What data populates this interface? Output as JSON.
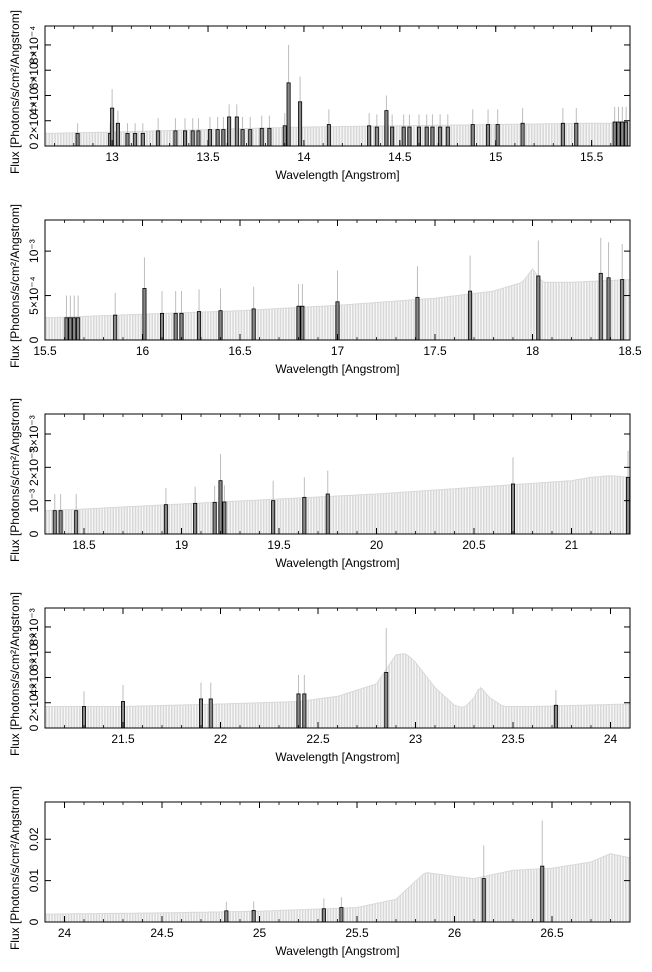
{
  "colors": {
    "background": "#ffffff",
    "axis": "#000000",
    "continuum": "#c8c8c8",
    "line_bar": "#000000",
    "line_fill": "#888888",
    "error_bar": "#bdbdbd"
  },
  "chart_data": [
    {
      "type": "bar",
      "title": "",
      "xlabel": "Wavelength [Angstrom]",
      "ylabel": "Flux [Photons/s/cm²/Angstrom]",
      "xlim": [
        12.65,
        15.7
      ],
      "ylim": [
        0,
        0.00095
      ],
      "x_ticks": [
        13,
        13.5,
        14,
        14.5,
        15,
        15.5
      ],
      "x_tick_labels": [
        "13",
        "13.5",
        "14",
        "14.5",
        "15",
        "15.5"
      ],
      "y_ticks": [
        0,
        0.0002,
        0.0004,
        0.0006,
        0.0008
      ],
      "y_tick_labels": [
        "0",
        "2×10⁻⁴",
        "4×10⁻⁴",
        "6×10⁻⁴",
        "8×10⁻⁴"
      ],
      "continuum": {
        "x": [
          12.65,
          13.0,
          13.5,
          14.0,
          14.5,
          15.0,
          15.5,
          15.7
        ],
        "y": [
          0.0001,
          0.00011,
          0.00013,
          0.00015,
          0.00016,
          0.00017,
          0.00018,
          0.00018
        ]
      },
      "lines": [
        {
          "x": 12.82,
          "y": 0.0001,
          "err": 8e-05
        },
        {
          "x": 12.99,
          "y": 0.0001,
          "err": 8e-05
        },
        {
          "x": 13.0,
          "y": 0.0003,
          "err": 0.00015
        },
        {
          "x": 13.03,
          "y": 0.00018,
          "err": 0.0001
        },
        {
          "x": 13.08,
          "y": 0.0001,
          "err": 8e-05
        },
        {
          "x": 13.12,
          "y": 0.0001,
          "err": 8e-05
        },
        {
          "x": 13.16,
          "y": 0.0001,
          "err": 8e-05
        },
        {
          "x": 13.24,
          "y": 0.00012,
          "err": 0.0001
        },
        {
          "x": 13.33,
          "y": 0.00012,
          "err": 0.0001
        },
        {
          "x": 13.38,
          "y": 0.00012,
          "err": 0.0001
        },
        {
          "x": 13.42,
          "y": 0.00012,
          "err": 0.0001
        },
        {
          "x": 13.45,
          "y": 0.00012,
          "err": 0.0001
        },
        {
          "x": 13.51,
          "y": 0.00013,
          "err": 0.0001
        },
        {
          "x": 13.55,
          "y": 0.00013,
          "err": 0.0001
        },
        {
          "x": 13.58,
          "y": 0.00013,
          "err": 0.0001
        },
        {
          "x": 13.61,
          "y": 0.00023,
          "err": 0.0001
        },
        {
          "x": 13.65,
          "y": 0.00023,
          "err": 0.0001
        },
        {
          "x": 13.68,
          "y": 0.00013,
          "err": 0.0001
        },
        {
          "x": 13.72,
          "y": 0.00013,
          "err": 0.0001
        },
        {
          "x": 13.78,
          "y": 0.00014,
          "err": 0.0001
        },
        {
          "x": 13.82,
          "y": 0.00014,
          "err": 0.0001
        },
        {
          "x": 13.9,
          "y": 0.00016,
          "err": 0.0001
        },
        {
          "x": 13.92,
          "y": 0.0005,
          "err": 0.0003
        },
        {
          "x": 13.98,
          "y": 0.00035,
          "err": 0.0002
        },
        {
          "x": 14.13,
          "y": 0.00017,
          "err": 0.00012
        },
        {
          "x": 14.34,
          "y": 0.00016,
          "err": 0.0001
        },
        {
          "x": 14.38,
          "y": 0.00015,
          "err": 0.0001
        },
        {
          "x": 14.43,
          "y": 0.00028,
          "err": 0.00012
        },
        {
          "x": 14.46,
          "y": 0.00015,
          "err": 0.0001
        },
        {
          "x": 14.52,
          "y": 0.00015,
          "err": 0.0001
        },
        {
          "x": 14.55,
          "y": 0.00015,
          "err": 0.0001
        },
        {
          "x": 14.6,
          "y": 0.00015,
          "err": 0.0001
        },
        {
          "x": 14.64,
          "y": 0.00015,
          "err": 0.0001
        },
        {
          "x": 14.67,
          "y": 0.00015,
          "err": 0.0001
        },
        {
          "x": 14.71,
          "y": 0.00015,
          "err": 0.0001
        },
        {
          "x": 14.75,
          "y": 0.00015,
          "err": 0.0001
        },
        {
          "x": 14.88,
          "y": 0.00017,
          "err": 0.00012
        },
        {
          "x": 14.96,
          "y": 0.00017,
          "err": 0.00012
        },
        {
          "x": 15.01,
          "y": 0.00017,
          "err": 0.00012
        },
        {
          "x": 15.14,
          "y": 0.00018,
          "err": 0.00012
        },
        {
          "x": 15.35,
          "y": 0.00018,
          "err": 0.00012
        },
        {
          "x": 15.42,
          "y": 0.00018,
          "err": 0.00012
        },
        {
          "x": 15.62,
          "y": 0.00019,
          "err": 0.00012
        },
        {
          "x": 15.64,
          "y": 0.00019,
          "err": 0.00012
        },
        {
          "x": 15.66,
          "y": 0.00019,
          "err": 0.00012
        },
        {
          "x": 15.68,
          "y": 0.00019,
          "err": 0.00012
        }
      ]
    },
    {
      "type": "bar",
      "title": "",
      "xlabel": "Wavelength [Angstrom]",
      "ylabel": "Flux [Photons/s/cm²/Angstrom]",
      "xlim": [
        15.5,
        18.5
      ],
      "ylim": [
        0,
        0.00135
      ],
      "x_ticks": [
        15.5,
        16,
        16.5,
        17,
        17.5,
        18,
        18.5
      ],
      "x_tick_labels": [
        "15.5",
        "16",
        "16.5",
        "17",
        "17.5",
        "18",
        "18.5"
      ],
      "y_ticks": [
        0,
        0.0005,
        0.001
      ],
      "y_tick_labels": [
        "0",
        "5×10⁻⁴",
        "10⁻³"
      ],
      "continuum": {
        "x": [
          15.5,
          16.0,
          16.5,
          17.0,
          17.5,
          17.8,
          17.95,
          18.0,
          18.05,
          18.2,
          18.5
        ],
        "y": [
          0.00025,
          0.00029,
          0.00033,
          0.00039,
          0.00047,
          0.00055,
          0.00065,
          0.0008,
          0.00065,
          0.00065,
          0.00068
        ]
      },
      "lines": [
        {
          "x": 15.61,
          "y": 0.00025,
          "err": 0.00025
        },
        {
          "x": 15.63,
          "y": 0.00025,
          "err": 0.00025
        },
        {
          "x": 15.65,
          "y": 0.00025,
          "err": 0.00025
        },
        {
          "x": 15.67,
          "y": 0.00025,
          "err": 0.00025
        },
        {
          "x": 15.86,
          "y": 0.00028,
          "err": 0.00025
        },
        {
          "x": 16.01,
          "y": 0.00058,
          "err": 0.00035
        },
        {
          "x": 16.1,
          "y": 0.0003,
          "err": 0.00025
        },
        {
          "x": 16.17,
          "y": 0.0003,
          "err": 0.00025
        },
        {
          "x": 16.2,
          "y": 0.0003,
          "err": 0.00025
        },
        {
          "x": 16.29,
          "y": 0.00032,
          "err": 0.00025
        },
        {
          "x": 16.4,
          "y": 0.00033,
          "err": 0.00025
        },
        {
          "x": 16.57,
          "y": 0.00035,
          "err": 0.00025
        },
        {
          "x": 16.8,
          "y": 0.00038,
          "err": 0.00025
        },
        {
          "x": 16.82,
          "y": 0.00038,
          "err": 0.00025
        },
        {
          "x": 17.0,
          "y": 0.00043,
          "err": 0.00035
        },
        {
          "x": 17.41,
          "y": 0.00048,
          "err": 0.00035
        },
        {
          "x": 17.68,
          "y": 0.00055,
          "err": 0.0004
        },
        {
          "x": 18.03,
          "y": 0.00072,
          "err": 0.0004
        },
        {
          "x": 18.35,
          "y": 0.00075,
          "err": 0.0004
        },
        {
          "x": 18.39,
          "y": 0.0007,
          "err": 0.0004
        },
        {
          "x": 18.46,
          "y": 0.00068,
          "err": 0.0004
        }
      ]
    },
    {
      "type": "bar",
      "title": "",
      "xlabel": "Wavelength [Angstrom]",
      "ylabel": "Flux [Photons/s/cm²/Angstrom]",
      "xlim": [
        18.3,
        21.3
      ],
      "ylim": [
        0,
        0.0036
      ],
      "x_ticks": [
        18.5,
        19,
        19.5,
        20,
        20.5,
        21
      ],
      "x_tick_labels": [
        "18.5",
        "19",
        "19.5",
        "20",
        "20.5",
        "21"
      ],
      "y_ticks": [
        0,
        0.001,
        0.002,
        0.003
      ],
      "y_tick_labels": [
        "0",
        "10⁻³",
        "2×10⁻³",
        "3×10⁻³"
      ],
      "continuum": {
        "x": [
          18.3,
          18.5,
          19.0,
          19.5,
          20.0,
          20.5,
          21.0,
          21.1,
          21.2,
          21.3
        ],
        "y": [
          0.0007,
          0.00075,
          0.0009,
          0.00105,
          0.0012,
          0.0014,
          0.0016,
          0.0017,
          0.00175,
          0.0017
        ]
      },
      "lines": [
        {
          "x": 18.35,
          "y": 0.0007,
          "err": 0.0005
        },
        {
          "x": 18.38,
          "y": 0.0007,
          "err": 0.0005
        },
        {
          "x": 18.46,
          "y": 0.0007,
          "err": 0.0005
        },
        {
          "x": 18.92,
          "y": 0.00088,
          "err": 0.0005
        },
        {
          "x": 19.07,
          "y": 0.00092,
          "err": 0.0005
        },
        {
          "x": 19.17,
          "y": 0.00095,
          "err": 0.0005
        },
        {
          "x": 19.2,
          "y": 0.0016,
          "err": 0.0008
        },
        {
          "x": 19.22,
          "y": 0.00096,
          "err": 0.0005
        },
        {
          "x": 19.47,
          "y": 0.001,
          "err": 0.0006
        },
        {
          "x": 19.63,
          "y": 0.0011,
          "err": 0.0006
        },
        {
          "x": 19.75,
          "y": 0.0012,
          "err": 0.0007
        },
        {
          "x": 20.7,
          "y": 0.0015,
          "err": 0.0008
        },
        {
          "x": 21.29,
          "y": 0.0017,
          "err": 0.0008
        }
      ]
    },
    {
      "type": "bar",
      "title": "",
      "xlabel": "Wavelength [Angstrom]",
      "ylabel": "Flux [Photons/s/cm²/Angstrom]",
      "xlim": [
        21.1,
        24.1
      ],
      "ylim": [
        0,
        0.0095
      ],
      "x_ticks": [
        21.5,
        22,
        22.5,
        23,
        23.5,
        24
      ],
      "x_tick_labels": [
        "21.5",
        "22",
        "22.5",
        "23",
        "23.5",
        "24"
      ],
      "y_ticks": [
        0,
        0.002,
        0.004,
        0.006,
        0.008
      ],
      "y_tick_labels": [
        "0",
        "2×10⁻³",
        "4×10⁻³",
        "6×10⁻³",
        "8×10⁻³"
      ],
      "continuum": {
        "x": [
          21.1,
          21.5,
          22.0,
          22.4,
          22.6,
          22.8,
          22.9,
          22.95,
          23.0,
          23.1,
          23.2,
          23.25,
          23.3,
          23.33,
          23.38,
          23.45,
          23.6,
          24.1
        ],
        "y": [
          0.0017,
          0.0017,
          0.0019,
          0.0021,
          0.0025,
          0.0035,
          0.0058,
          0.0059,
          0.0052,
          0.0032,
          0.0018,
          0.0016,
          0.0024,
          0.0033,
          0.0024,
          0.0017,
          0.0017,
          0.0019
        ]
      },
      "lines": [
        {
          "x": 21.3,
          "y": 0.0017,
          "err": 0.0012
        },
        {
          "x": 21.5,
          "y": 0.0021,
          "err": 0.0013
        },
        {
          "x": 21.9,
          "y": 0.0023,
          "err": 0.0013
        },
        {
          "x": 21.95,
          "y": 0.0023,
          "err": 0.0013
        },
        {
          "x": 22.4,
          "y": 0.0027,
          "err": 0.0015
        },
        {
          "x": 22.43,
          "y": 0.0027,
          "err": 0.0015
        },
        {
          "x": 22.85,
          "y": 0.0044,
          "err": 0.0035
        },
        {
          "x": 23.72,
          "y": 0.0018,
          "err": 0.0012
        }
      ]
    },
    {
      "type": "bar",
      "title": "",
      "xlabel": "Wavelength [Angstrom]",
      "ylabel": "Flux [Photons/s/cm²/Angstrom]",
      "xlim": [
        23.9,
        26.9
      ],
      "ylim": [
        0,
        0.029
      ],
      "x_ticks": [
        24,
        24.5,
        25,
        25.5,
        26,
        26.5
      ],
      "x_tick_labels": [
        "24",
        "24.5",
        "25",
        "25.5",
        "26",
        "26.5"
      ],
      "y_ticks": [
        0,
        0.01,
        0.02
      ],
      "y_tick_labels": [
        "0",
        "0.01",
        "0.02"
      ],
      "continuum": {
        "x": [
          23.9,
          24.5,
          25.0,
          25.5,
          25.7,
          25.85,
          26.0,
          26.1,
          26.3,
          26.5,
          26.7,
          26.8,
          26.9
        ],
        "y": [
          0.0019,
          0.0022,
          0.0026,
          0.0035,
          0.0055,
          0.012,
          0.011,
          0.0105,
          0.0125,
          0.013,
          0.0145,
          0.0165,
          0.0155
        ]
      },
      "lines": [
        {
          "x": 24.83,
          "y": 0.0027,
          "err": 0.0022
        },
        {
          "x": 24.97,
          "y": 0.0028,
          "err": 0.0022
        },
        {
          "x": 25.33,
          "y": 0.0032,
          "err": 0.0025
        },
        {
          "x": 25.42,
          "y": 0.0035,
          "err": 0.0025
        },
        {
          "x": 26.15,
          "y": 0.0105,
          "err": 0.008
        },
        {
          "x": 26.45,
          "y": 0.0135,
          "err": 0.011
        }
      ]
    }
  ]
}
